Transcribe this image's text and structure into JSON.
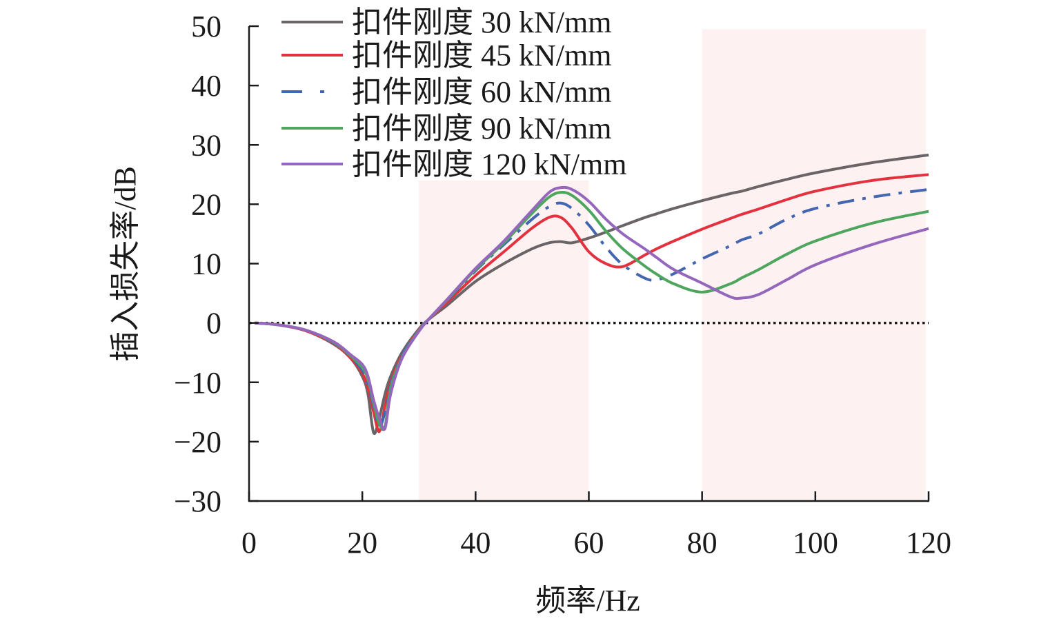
{
  "chart_data": {
    "type": "line",
    "title": "",
    "xlabel": "频率/Hz",
    "ylabel": "插入损失率/dB",
    "xlim": [
      0,
      120
    ],
    "ylim": [
      -30,
      50
    ],
    "xticks": [
      0,
      20,
      40,
      60,
      80,
      100,
      120
    ],
    "yticks": [
      50,
      40,
      30,
      20,
      10,
      0,
      -10,
      -20,
      -30
    ],
    "ytick_labels": [
      "50",
      "40",
      "30",
      "20",
      "10",
      "0",
      "−10",
      "−20",
      "−30"
    ],
    "legend_position": "top-left",
    "reference_line": {
      "y": 0,
      "style": "dotted",
      "color": "#1a1a1a"
    },
    "shaded_regions": [
      {
        "x": [
          30,
          60
        ],
        "y": [
          -30,
          24
        ],
        "color": "#fdf1f1"
      },
      {
        "x": [
          80,
          119.5
        ],
        "y": [
          -30,
          49.5
        ],
        "color": "#fdf1f1"
      }
    ],
    "x": [
      1,
      5,
      10,
      15,
      18,
      20,
      21,
      22,
      23,
      24,
      25,
      27,
      30,
      32,
      35,
      40,
      45,
      50,
      53,
      55,
      57,
      60,
      63,
      66,
      70,
      72,
      75,
      80,
      85,
      87,
      90,
      95,
      100,
      110,
      120
    ],
    "series": [
      {
        "name": "扣件刚度 30 kN/mm",
        "color": "#6b6466",
        "dash": "solid",
        "values": [
          0,
          -0.3,
          -1.3,
          -3.6,
          -6,
          -9,
          -12,
          -18.5,
          -16,
          -12,
          -9,
          -5,
          -1,
          0.8,
          3,
          7,
          10,
          12.5,
          13.5,
          13.7,
          13.5,
          14.3,
          15.3,
          16.4,
          17.8,
          18.4,
          19.3,
          20.6,
          21.8,
          22.2,
          23,
          24.2,
          25.3,
          27,
          28.3
        ]
      },
      {
        "name": "扣件刚度 45 kN/mm",
        "color": "#e3323f",
        "dash": "solid",
        "values": [
          0,
          -0.3,
          -1.3,
          -3.5,
          -6,
          -8.5,
          -11,
          -15,
          -18.3,
          -14,
          -10,
          -5.5,
          -1.2,
          0.9,
          3.5,
          8,
          12,
          16,
          17.8,
          17.8,
          16,
          12,
          10,
          9.5,
          11.5,
          12.5,
          13.8,
          15.8,
          17.6,
          18.3,
          19.2,
          20.8,
          22.2,
          24,
          25
        ]
      },
      {
        "name": "扣件刚度 60 kN/mm",
        "color": "#4466b0",
        "dash": "dashdot",
        "values": [
          0,
          -0.3,
          -1.2,
          -3.4,
          -5.8,
          -8,
          -10.5,
          -14,
          -17.5,
          -15,
          -10.5,
          -5.5,
          -1.2,
          0.9,
          3.8,
          8.8,
          13.2,
          17.5,
          19.6,
          20.2,
          19.3,
          16.5,
          12.8,
          9.8,
          7.5,
          7.3,
          8.3,
          10.8,
          13,
          14,
          15,
          17.5,
          19.3,
          21.2,
          22.5
        ]
      },
      {
        "name": "扣件刚度 90 kN/mm",
        "color": "#4ea55e",
        "dash": "solid",
        "values": [
          0,
          -0.3,
          -1.2,
          -3.3,
          -5.6,
          -7.5,
          -9.5,
          -13.5,
          -17,
          -17.5,
          -11,
          -5.8,
          -1.3,
          0.9,
          3.9,
          9,
          13.5,
          18.5,
          21.2,
          22,
          21.5,
          19,
          15.5,
          12.5,
          9.5,
          8.2,
          6.6,
          5.2,
          6.6,
          7.6,
          9,
          11.6,
          13.8,
          16.8,
          18.8
        ]
      },
      {
        "name": "扣件刚度 120 kN/mm",
        "color": "#9467bd",
        "dash": "solid",
        "values": [
          0,
          -0.3,
          -1.2,
          -3.2,
          -5.4,
          -7,
          -9,
          -13,
          -16,
          -17.8,
          -12,
          -6,
          -1.4,
          0.9,
          4,
          9.2,
          13.8,
          19,
          22,
          22.8,
          22.5,
          20.5,
          17.5,
          15,
          12.4,
          11,
          9,
          6.7,
          4.4,
          4.2,
          4.8,
          7.3,
          9.8,
          13.2,
          15.9
        ]
      }
    ]
  }
}
